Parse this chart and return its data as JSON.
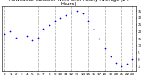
{
  "hours": [
    0,
    1,
    2,
    3,
    4,
    5,
    6,
    7,
    8,
    9,
    10,
    11,
    12,
    13,
    14,
    15,
    16,
    17,
    18,
    19,
    20,
    21,
    22,
    23
  ],
  "values": [
    18,
    20,
    16,
    15,
    17,
    14,
    16,
    22,
    25,
    28,
    30,
    32,
    34,
    35,
    33,
    28,
    22,
    15,
    8,
    2,
    -2,
    -5,
    -3,
    0
  ],
  "dot_color": "#0000ff",
  "bg_color": "#ffffff",
  "plot_bg_color": "#ffffff",
  "text_color": "#000000",
  "grid_color": "#aaaaaa",
  "spine_color": "#000000",
  "ylim": [
    -8,
    38
  ],
  "ytick_values": [
    35,
    30,
    25,
    20,
    15,
    10,
    5,
    0,
    -5
  ],
  "grid_hours": [
    0,
    3,
    6,
    9,
    12,
    15,
    18,
    21,
    23
  ],
  "title_fontsize": 3.8,
  "tick_fontsize": 3.0,
  "dot_size": 1.5
}
